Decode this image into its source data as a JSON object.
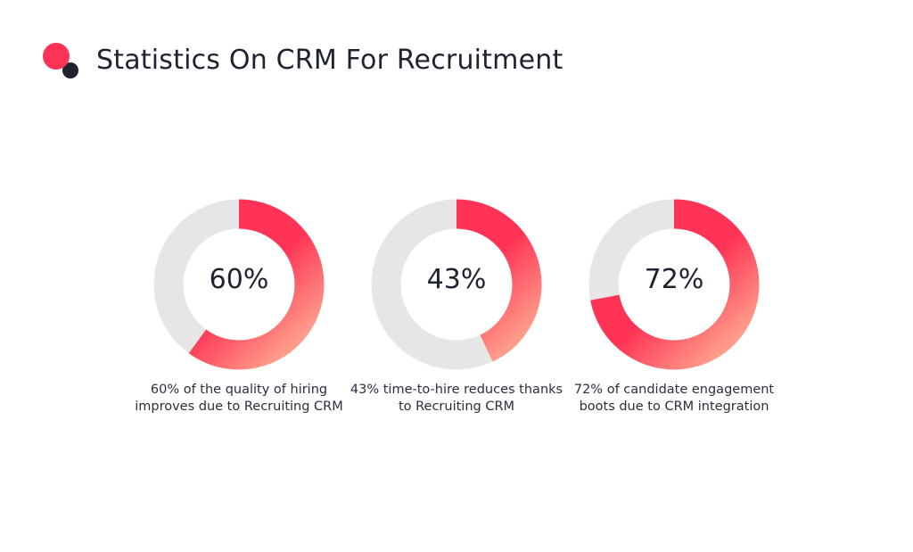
{
  "title": "Statistics On CRM For Recruitment",
  "colors": {
    "accent": "#ff3355",
    "accent_light": "#ff9c8a",
    "track": "#e6e6e6",
    "text": "#1f2330",
    "logo_dark": "#1f2330"
  },
  "chart_data": [
    {
      "type": "pie",
      "variant": "donut",
      "value": 60,
      "label": "60%",
      "caption": "60% of the quality of hiring improves due to Recruiting CRM"
    },
    {
      "type": "pie",
      "variant": "donut",
      "value": 43,
      "label": "43%",
      "caption": "43% time-to-hire reduces thanks to Recruiting CRM"
    },
    {
      "type": "pie",
      "variant": "donut",
      "value": 72,
      "label": "72%",
      "caption": "72% of candidate engagement boots due to CRM integration"
    }
  ]
}
